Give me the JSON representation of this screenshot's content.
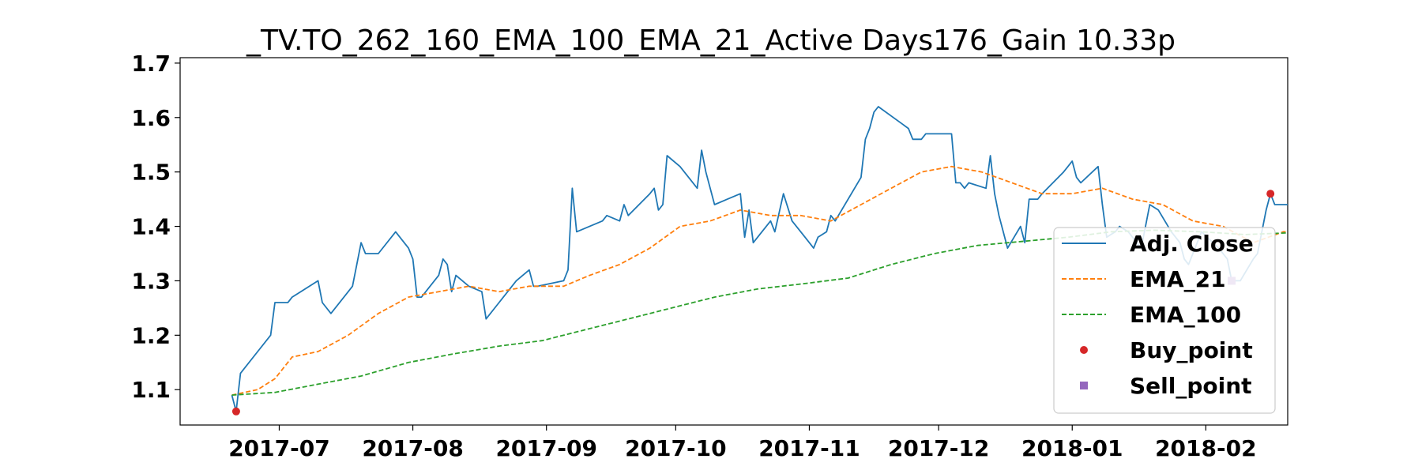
{
  "chart_data": {
    "type": "line",
    "title": "_TV.TO_262_160_EMA_100_EMA_21_Active Days176_Gain  10.33p",
    "xlabel": "",
    "ylabel": "",
    "x_type": "date",
    "xlim": [
      "2017-06-08",
      "2018-02-20"
    ],
    "ylim": [
      1.035,
      1.71
    ],
    "y_ticks": [
      1.1,
      1.2,
      1.3,
      1.4,
      1.5,
      1.6,
      1.7
    ],
    "y_tick_labels": [
      "1.1",
      "1.2",
      "1.3",
      "1.4",
      "1.5",
      "1.6",
      "1.7"
    ],
    "x_ticks": [
      "2017-07-01",
      "2017-08-01",
      "2017-09-01",
      "2017-10-01",
      "2017-11-01",
      "2017-12-01",
      "2018-01-01",
      "2018-02-01"
    ],
    "x_tick_labels": [
      "2017-07",
      "2017-08",
      "2017-09",
      "2017-10",
      "2017-11",
      "2017-12",
      "2018-01",
      "2018-02"
    ],
    "grid": false,
    "legend_position": "lower-right",
    "series": [
      {
        "name": "Adj. Close",
        "color": "#1f77b4",
        "style": "solid",
        "points": [
          [
            "2017-06-20",
            1.09
          ],
          [
            "2017-06-21",
            1.06
          ],
          [
            "2017-06-22",
            1.13
          ],
          [
            "2017-06-23",
            1.14
          ],
          [
            "2017-06-26",
            1.17
          ],
          [
            "2017-06-29",
            1.2
          ],
          [
            "2017-06-30",
            1.26
          ],
          [
            "2017-07-03",
            1.26
          ],
          [
            "2017-07-04",
            1.27
          ],
          [
            "2017-07-10",
            1.3
          ],
          [
            "2017-07-11",
            1.26
          ],
          [
            "2017-07-13",
            1.24
          ],
          [
            "2017-07-17",
            1.28
          ],
          [
            "2017-07-18",
            1.29
          ],
          [
            "2017-07-20",
            1.37
          ],
          [
            "2017-07-21",
            1.35
          ],
          [
            "2017-07-24",
            1.35
          ],
          [
            "2017-07-28",
            1.39
          ],
          [
            "2017-07-31",
            1.36
          ],
          [
            "2017-08-01",
            1.34
          ],
          [
            "2017-08-02",
            1.27
          ],
          [
            "2017-08-03",
            1.27
          ],
          [
            "2017-08-07",
            1.31
          ],
          [
            "2017-08-08",
            1.34
          ],
          [
            "2017-08-09",
            1.33
          ],
          [
            "2017-08-10",
            1.28
          ],
          [
            "2017-08-11",
            1.31
          ],
          [
            "2017-08-14",
            1.29
          ],
          [
            "2017-08-17",
            1.28
          ],
          [
            "2017-08-18",
            1.23
          ],
          [
            "2017-08-21",
            1.26
          ],
          [
            "2017-08-24",
            1.29
          ],
          [
            "2017-08-25",
            1.3
          ],
          [
            "2017-08-28",
            1.32
          ],
          [
            "2017-08-29",
            1.29
          ],
          [
            "2017-08-30",
            1.29
          ],
          [
            "2017-09-05",
            1.3
          ],
          [
            "2017-09-06",
            1.32
          ],
          [
            "2017-09-07",
            1.47
          ],
          [
            "2017-09-08",
            1.39
          ],
          [
            "2017-09-11",
            1.4
          ],
          [
            "2017-09-14",
            1.41
          ],
          [
            "2017-09-15",
            1.42
          ],
          [
            "2017-09-18",
            1.41
          ],
          [
            "2017-09-19",
            1.44
          ],
          [
            "2017-09-20",
            1.42
          ],
          [
            "2017-09-25",
            1.46
          ],
          [
            "2017-09-26",
            1.47
          ],
          [
            "2017-09-27",
            1.43
          ],
          [
            "2017-09-28",
            1.44
          ],
          [
            "2017-09-29",
            1.53
          ],
          [
            "2017-10-02",
            1.51
          ],
          [
            "2017-10-06",
            1.47
          ],
          [
            "2017-10-07",
            1.54
          ],
          [
            "2017-10-08",
            1.5
          ],
          [
            "2017-10-10",
            1.44
          ],
          [
            "2017-10-13",
            1.45
          ],
          [
            "2017-10-16",
            1.46
          ],
          [
            "2017-10-17",
            1.38
          ],
          [
            "2017-10-18",
            1.43
          ],
          [
            "2017-10-19",
            1.37
          ],
          [
            "2017-10-23",
            1.41
          ],
          [
            "2017-10-24",
            1.39
          ],
          [
            "2017-10-26",
            1.46
          ],
          [
            "2017-10-28",
            1.41
          ],
          [
            "2017-10-30",
            1.39
          ],
          [
            "2017-11-01",
            1.37
          ],
          [
            "2017-11-02",
            1.36
          ],
          [
            "2017-11-03",
            1.38
          ],
          [
            "2017-11-05",
            1.39
          ],
          [
            "2017-11-06",
            1.42
          ],
          [
            "2017-11-07",
            1.41
          ],
          [
            "2017-11-13",
            1.49
          ],
          [
            "2017-11-14",
            1.56
          ],
          [
            "2017-11-15",
            1.58
          ],
          [
            "2017-11-16",
            1.61
          ],
          [
            "2017-11-17",
            1.62
          ],
          [
            "2017-11-24",
            1.58
          ],
          [
            "2017-11-25",
            1.56
          ],
          [
            "2017-11-27",
            1.56
          ],
          [
            "2017-11-28",
            1.57
          ],
          [
            "2017-12-04",
            1.57
          ],
          [
            "2017-12-05",
            1.48
          ],
          [
            "2017-12-06",
            1.48
          ],
          [
            "2017-12-07",
            1.47
          ],
          [
            "2017-12-08",
            1.48
          ],
          [
            "2017-12-12",
            1.47
          ],
          [
            "2017-12-13",
            1.53
          ],
          [
            "2017-12-14",
            1.46
          ],
          [
            "2017-12-15",
            1.42
          ],
          [
            "2017-12-17",
            1.36
          ],
          [
            "2017-12-20",
            1.4
          ],
          [
            "2017-12-21",
            1.37
          ],
          [
            "2017-12-22",
            1.45
          ],
          [
            "2017-12-24",
            1.45
          ],
          [
            "2017-12-25",
            1.46
          ],
          [
            "2017-12-30",
            1.5
          ],
          [
            "2017-12-31",
            1.51
          ],
          [
            "2018-01-01",
            1.52
          ],
          [
            "2018-01-02",
            1.49
          ],
          [
            "2018-01-03",
            1.48
          ],
          [
            "2018-01-07",
            1.51
          ],
          [
            "2018-01-08",
            1.44
          ],
          [
            "2018-01-09",
            1.38
          ],
          [
            "2018-01-11",
            1.39
          ],
          [
            "2018-01-12",
            1.4
          ],
          [
            "2018-01-14",
            1.39
          ],
          [
            "2018-01-17",
            1.36
          ],
          [
            "2018-01-18",
            1.4
          ],
          [
            "2018-01-19",
            1.44
          ],
          [
            "2018-01-21",
            1.43
          ],
          [
            "2018-01-24",
            1.39
          ],
          [
            "2018-01-26",
            1.37
          ],
          [
            "2018-01-27",
            1.34
          ],
          [
            "2018-01-28",
            1.33
          ],
          [
            "2018-01-31",
            1.39
          ],
          [
            "2018-02-04",
            1.36
          ],
          [
            "2018-02-06",
            1.34
          ],
          [
            "2018-02-07",
            1.3
          ],
          [
            "2018-02-09",
            1.3
          ],
          [
            "2018-02-12",
            1.34
          ],
          [
            "2018-02-13",
            1.35
          ],
          [
            "2018-02-15",
            1.43
          ],
          [
            "2018-02-16",
            1.46
          ],
          [
            "2018-02-17",
            1.44
          ],
          [
            "2018-02-20",
            1.44
          ]
        ]
      },
      {
        "name": "EMA_21",
        "color": "#ff7f0e",
        "style": "dashed",
        "points": [
          [
            "2017-06-20",
            1.09
          ],
          [
            "2017-06-26",
            1.1
          ],
          [
            "2017-06-30",
            1.12
          ],
          [
            "2017-07-04",
            1.16
          ],
          [
            "2017-07-10",
            1.17
          ],
          [
            "2017-07-17",
            1.2
          ],
          [
            "2017-07-24",
            1.24
          ],
          [
            "2017-07-31",
            1.27
          ],
          [
            "2017-08-07",
            1.28
          ],
          [
            "2017-08-14",
            1.29
          ],
          [
            "2017-08-21",
            1.28
          ],
          [
            "2017-08-28",
            1.29
          ],
          [
            "2017-09-05",
            1.29
          ],
          [
            "2017-09-11",
            1.31
          ],
          [
            "2017-09-18",
            1.33
          ],
          [
            "2017-09-25",
            1.36
          ],
          [
            "2017-10-02",
            1.4
          ],
          [
            "2017-10-09",
            1.41
          ],
          [
            "2017-10-16",
            1.43
          ],
          [
            "2017-10-23",
            1.42
          ],
          [
            "2017-10-30",
            1.42
          ],
          [
            "2017-11-06",
            1.41
          ],
          [
            "2017-11-13",
            1.44
          ],
          [
            "2017-11-20",
            1.47
          ],
          [
            "2017-11-27",
            1.5
          ],
          [
            "2017-12-04",
            1.51
          ],
          [
            "2017-12-11",
            1.5
          ],
          [
            "2017-12-18",
            1.48
          ],
          [
            "2017-12-25",
            1.46
          ],
          [
            "2018-01-01",
            1.46
          ],
          [
            "2018-01-08",
            1.47
          ],
          [
            "2018-01-15",
            1.45
          ],
          [
            "2018-01-22",
            1.44
          ],
          [
            "2018-01-29",
            1.41
          ],
          [
            "2018-02-05",
            1.4
          ],
          [
            "2018-02-12",
            1.37
          ],
          [
            "2018-02-19",
            1.39
          ],
          [
            "2018-02-20",
            1.39
          ]
        ]
      },
      {
        "name": "EMA_100",
        "color": "#2ca02c",
        "style": "dashed",
        "points": [
          [
            "2017-06-20",
            1.09
          ],
          [
            "2017-06-30",
            1.095
          ],
          [
            "2017-07-10",
            1.11
          ],
          [
            "2017-07-20",
            1.125
          ],
          [
            "2017-07-31",
            1.15
          ],
          [
            "2017-08-10",
            1.165
          ],
          [
            "2017-08-21",
            1.18
          ],
          [
            "2017-08-31",
            1.19
          ],
          [
            "2017-09-10",
            1.21
          ],
          [
            "2017-09-20",
            1.23
          ],
          [
            "2017-09-30",
            1.25
          ],
          [
            "2017-10-10",
            1.27
          ],
          [
            "2017-10-20",
            1.285
          ],
          [
            "2017-10-31",
            1.295
          ],
          [
            "2017-11-10",
            1.305
          ],
          [
            "2017-11-20",
            1.33
          ],
          [
            "2017-11-30",
            1.35
          ],
          [
            "2017-12-10",
            1.365
          ],
          [
            "2017-12-20",
            1.372
          ],
          [
            "2017-12-31",
            1.38
          ],
          [
            "2018-01-10",
            1.39
          ],
          [
            "2018-01-20",
            1.393
          ],
          [
            "2018-01-31",
            1.39
          ],
          [
            "2018-02-10",
            1.385
          ],
          [
            "2018-02-20",
            1.388
          ]
        ]
      }
    ],
    "markers": [
      {
        "name": "Buy_point",
        "shape": "circle",
        "color": "#d62728",
        "points": [
          [
            "2017-06-21",
            1.06
          ],
          [
            "2018-02-16",
            1.46
          ]
        ]
      },
      {
        "name": "Sell_point",
        "shape": "square",
        "color": "#9467bd",
        "points": [
          [
            "2018-02-07",
            1.3
          ]
        ]
      }
    ]
  }
}
